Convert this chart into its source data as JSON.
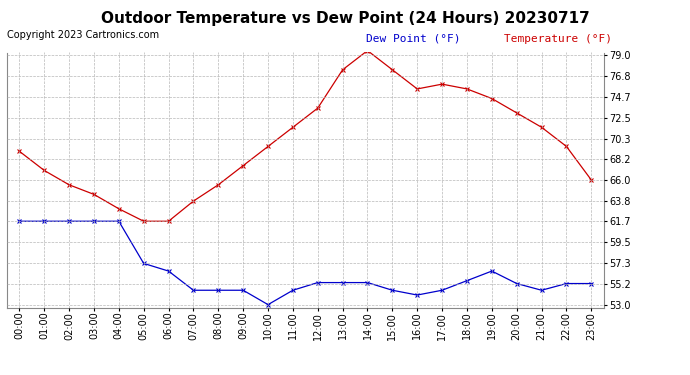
{
  "title": "Outdoor Temperature vs Dew Point (24 Hours) 20230717",
  "copyright": "Copyright 2023 Cartronics.com",
  "legend_dew": "Dew Point (°F)",
  "legend_temp": "Temperature (°F)",
  "hours": [
    "00:00",
    "01:00",
    "02:00",
    "03:00",
    "04:00",
    "05:00",
    "06:00",
    "07:00",
    "08:00",
    "09:00",
    "10:00",
    "11:00",
    "12:00",
    "13:00",
    "14:00",
    "15:00",
    "16:00",
    "17:00",
    "18:00",
    "19:00",
    "20:00",
    "21:00",
    "22:00",
    "23:00"
  ],
  "temperature": [
    69.0,
    67.0,
    65.5,
    64.5,
    63.0,
    61.7,
    61.7,
    63.8,
    65.5,
    67.5,
    69.5,
    71.5,
    73.5,
    77.5,
    79.5,
    77.5,
    75.5,
    76.0,
    75.5,
    74.5,
    73.0,
    71.5,
    69.5,
    66.0
  ],
  "dew_point": [
    61.7,
    61.7,
    61.7,
    61.7,
    61.7,
    57.3,
    56.5,
    54.5,
    54.5,
    54.5,
    53.0,
    54.5,
    55.3,
    55.3,
    55.3,
    54.5,
    54.0,
    54.5,
    55.5,
    56.5,
    55.2,
    54.5,
    55.2,
    55.2
  ],
  "temp_color": "#cc0000",
  "dew_color": "#0000cc",
  "ylim_min": 53.0,
  "ylim_max": 79.0,
  "yticks": [
    53.0,
    55.2,
    57.3,
    59.5,
    61.7,
    63.8,
    66.0,
    68.2,
    70.3,
    72.5,
    74.7,
    76.8,
    79.0
  ],
  "bg_color": "#ffffff",
  "grid_color": "#b0b0b0",
  "title_fontsize": 11,
  "label_fontsize": 7,
  "copyright_fontsize": 7,
  "legend_fontsize": 8
}
